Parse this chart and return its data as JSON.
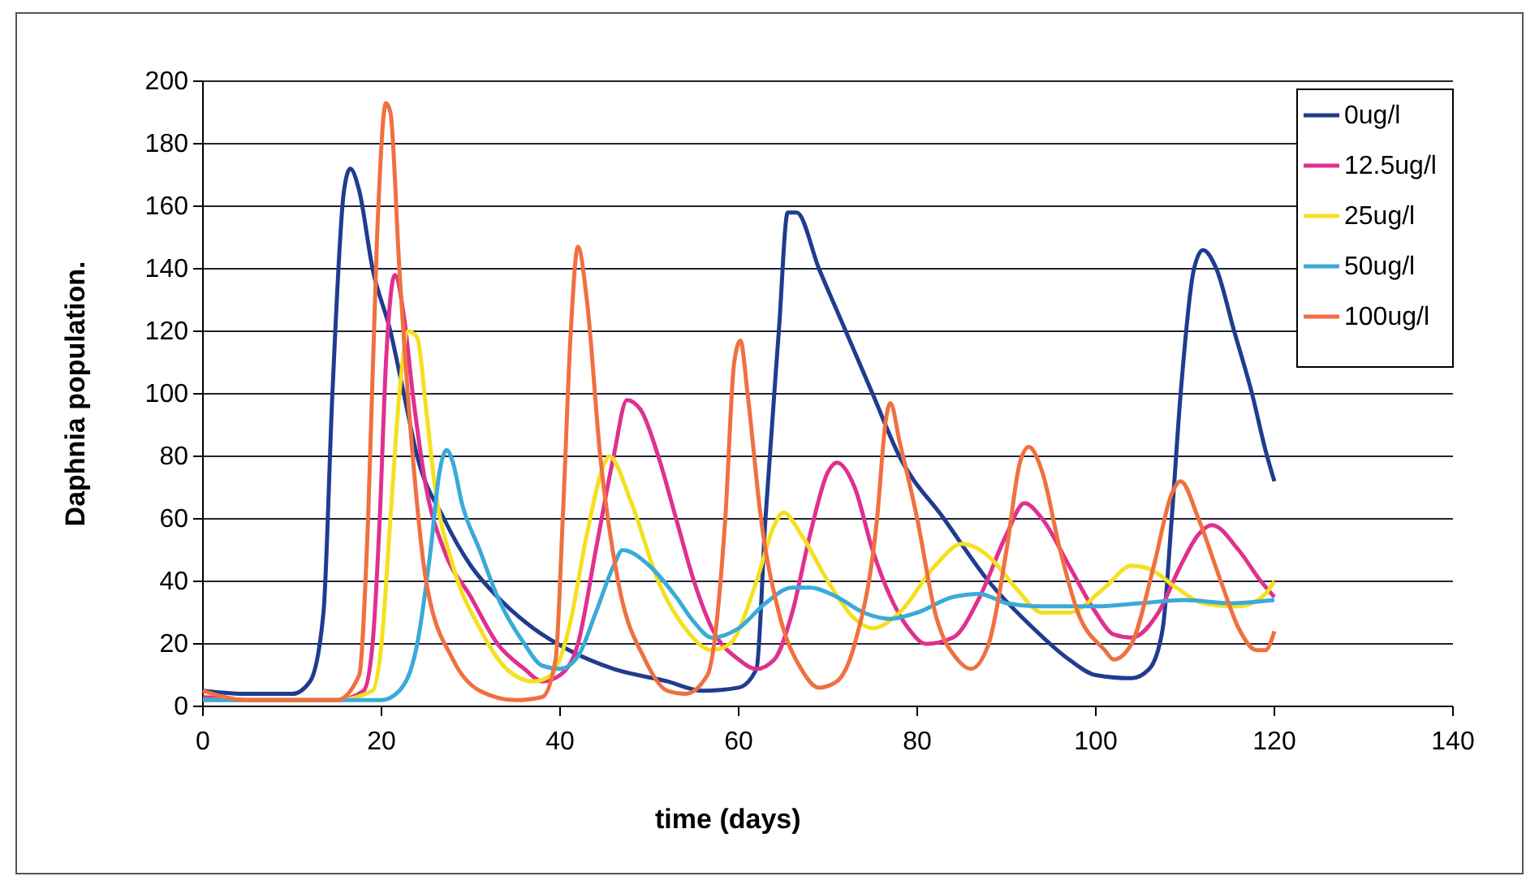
{
  "chart_data": {
    "type": "line",
    "xlabel": "time (days)",
    "ylabel": "Daphnia population.",
    "xlim": [
      0,
      140
    ],
    "xticks": [
      0,
      20,
      40,
      60,
      80,
      100,
      120,
      140
    ],
    "ylim": [
      0,
      200
    ],
    "yticks": [
      0,
      20,
      40,
      60,
      80,
      100,
      120,
      140,
      160,
      180,
      200
    ],
    "grid": "y",
    "legend": "top right",
    "marker": "none",
    "line_style": "solid",
    "series": [
      {
        "name": "0ug/l",
        "color": "#1f3c8f",
        "x": [
          0,
          5,
          10,
          12,
          13.5,
          14.5,
          15.8,
          16.5,
          17.5,
          19,
          21,
          22.5,
          24,
          27,
          30,
          33,
          37,
          41,
          46,
          52,
          56,
          60,
          62,
          63,
          64.5,
          65.5,
          66.5,
          69,
          72,
          75,
          78,
          83,
          88,
          93,
          97,
          100,
          104,
          106,
          107.5,
          108.5,
          109.5,
          111,
          112,
          113.5,
          115.5,
          117.5,
          119,
          120
        ],
        "values": [
          5,
          4,
          4,
          8,
          30,
          100,
          165,
          172,
          165,
          140,
          120,
          100,
          80,
          60,
          45,
          35,
          25,
          18,
          12,
          8,
          5,
          6,
          12,
          60,
          120,
          158,
          158,
          140,
          120,
          100,
          80,
          60,
          40,
          25,
          15,
          10,
          9,
          12,
          25,
          60,
          100,
          140,
          146,
          140,
          120,
          100,
          82,
          72
        ]
      },
      {
        "name": "12.5ug/l",
        "color": "#e0308f",
        "x": [
          0,
          5,
          15,
          18,
          19,
          19.8,
          20.5,
          21.5,
          22.5,
          23.5,
          25,
          27,
          30,
          33,
          36,
          38,
          40,
          42,
          44,
          46,
          47.5,
          49,
          51,
          53,
          55,
          57,
          60,
          62,
          64,
          66,
          68,
          70,
          71,
          73,
          75,
          77,
          79,
          81,
          84,
          87,
          90,
          92,
          94,
          97,
          100,
          102,
          104,
          107,
          109.5,
          111.5,
          113,
          116,
          118.5,
          120
        ],
        "values": [
          3,
          2,
          2,
          5,
          20,
          60,
          110,
          138,
          125,
          100,
          70,
          50,
          35,
          20,
          12,
          8,
          10,
          20,
          50,
          80,
          98,
          95,
          80,
          60,
          40,
          25,
          15,
          12,
          15,
          30,
          55,
          75,
          78,
          70,
          50,
          35,
          25,
          20,
          22,
          35,
          55,
          65,
          60,
          45,
          30,
          23,
          22,
          30,
          45,
          55,
          58,
          50,
          40,
          35
        ]
      },
      {
        "name": "25ug/l",
        "color": "#f5e020",
        "x": [
          0,
          15,
          19,
          20,
          21,
          22,
          23,
          24,
          25,
          26,
          28,
          31,
          34,
          37,
          39,
          41,
          43,
          45,
          45.5,
          48,
          51,
          54,
          57,
          59,
          62,
          64,
          65,
          67,
          70,
          73,
          75,
          78,
          82,
          85,
          88,
          91,
          94,
          97,
          101,
          104,
          106,
          109,
          112,
          116,
          119,
          120
        ],
        "values": [
          2,
          2,
          5,
          20,
          60,
          100,
          120,
          118,
          95,
          70,
          45,
          25,
          12,
          8,
          10,
          25,
          55,
          78,
          80,
          65,
          40,
          25,
          18,
          20,
          40,
          58,
          62,
          55,
          40,
          28,
          25,
          30,
          45,
          52,
          48,
          38,
          30,
          30,
          38,
          45,
          44,
          38,
          33,
          32,
          36,
          40
        ]
      },
      {
        "name": "50ug/l",
        "color": "#3aaad8",
        "x": [
          0,
          20,
          22,
          24,
          25.5,
          26.5,
          27.3,
          28,
          29,
          31,
          33,
          36,
          38,
          40,
          42,
          44,
          46,
          47,
          50,
          53,
          55,
          57,
          60,
          63,
          66,
          68,
          71,
          74,
          77,
          80,
          84,
          87,
          90,
          94,
          100,
          105,
          110,
          115,
          120
        ],
        "values": [
          2,
          2,
          5,
          20,
          50,
          75,
          82,
          78,
          65,
          50,
          35,
          20,
          13,
          12,
          16,
          30,
          45,
          50,
          45,
          35,
          27,
          22,
          25,
          33,
          38,
          38,
          35,
          30,
          28,
          30,
          35,
          36,
          33,
          32,
          32,
          33,
          34,
          33,
          34
        ]
      },
      {
        "name": "100ug/l",
        "color": "#f07040",
        "x": [
          0,
          5,
          15,
          17.5,
          18.5,
          19.5,
          20.5,
          21,
          22,
          23.5,
          25,
          28,
          31,
          35,
          38,
          39.5,
          40.3,
          41.2,
          42,
          43,
          44.5,
          46.5,
          49.5,
          52,
          54,
          56.5,
          58.5,
          59.5,
          60.2,
          61,
          62.5,
          64.5,
          67,
          69,
          71,
          73,
          75.5,
          76.5,
          77,
          78,
          80,
          82,
          84.5,
          86,
          88,
          90,
          91.5,
          92.5,
          94,
          96,
          98,
          101,
          102,
          104,
          106.5,
          108.5,
          109.5,
          111.5,
          114,
          116,
          118,
          119,
          120
        ],
        "values": [
          5,
          2,
          2,
          10,
          60,
          150,
          193,
          190,
          140,
          80,
          40,
          15,
          5,
          2,
          3,
          15,
          60,
          120,
          147,
          130,
          80,
          40,
          15,
          5,
          4,
          10,
          60,
          110,
          117,
          100,
          60,
          30,
          12,
          6,
          8,
          20,
          60,
          92,
          97,
          85,
          60,
          30,
          15,
          12,
          20,
          50,
          78,
          83,
          75,
          50,
          30,
          18,
          15,
          20,
          45,
          68,
          72,
          60,
          40,
          25,
          18,
          18,
          24
        ]
      }
    ]
  }
}
